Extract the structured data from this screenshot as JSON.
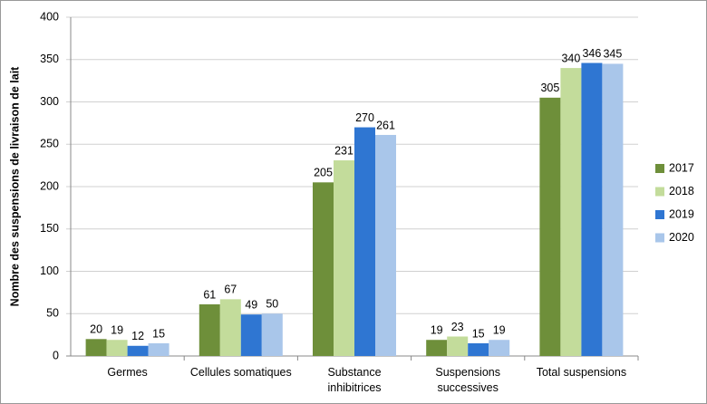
{
  "chart_data": {
    "type": "bar",
    "y_label": "Nombre des suspensions de livraison de lait",
    "categories": [
      "Germes",
      "Cellules somatiques",
      "Substance\ninhibitrices",
      "Suspensions\nsuccessives",
      "Total suspensions"
    ],
    "series": [
      {
        "name": "2017",
        "color": "#6e8f3a",
        "values": [
          20,
          61,
          205,
          19,
          305
        ]
      },
      {
        "name": "2018",
        "color": "#c3dc9b",
        "values": [
          19,
          67,
          231,
          23,
          340
        ]
      },
      {
        "name": "2019",
        "color": "#2f76d2",
        "values": [
          12,
          49,
          270,
          15,
          346
        ]
      },
      {
        "name": "2020",
        "color": "#a9c6ea",
        "values": [
          15,
          50,
          261,
          19,
          345
        ]
      }
    ],
    "ylim": [
      0,
      400
    ],
    "yticks": [
      0,
      50,
      100,
      150,
      200,
      250,
      300,
      350,
      400
    ],
    "grid": true,
    "legend": "right"
  }
}
